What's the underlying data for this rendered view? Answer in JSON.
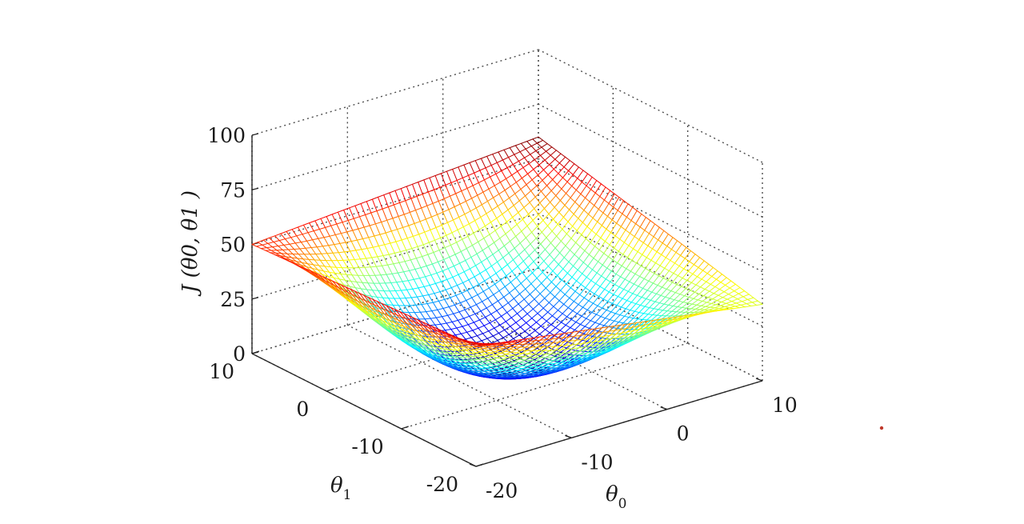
{
  "chart_data": {
    "type": "surface",
    "title": "",
    "function": "J(θ0, θ1)",
    "x": {
      "name": "theta0",
      "label": "θ",
      "label_sub": "0",
      "range": [
        -20,
        10
      ],
      "ticks": [
        -20,
        -10,
        0,
        10
      ],
      "tick_labels": [
        "-20",
        "-10",
        "0",
        "10"
      ]
    },
    "y": {
      "name": "theta1",
      "label": "θ",
      "label_sub": "1",
      "range": [
        -20,
        10
      ],
      "ticks": [
        -20,
        -10,
        0,
        10
      ],
      "tick_labels": [
        "-20",
        "-10",
        "0",
        "10"
      ]
    },
    "z": {
      "name": "J",
      "label": "J (θ0, θ1 )",
      "range": [
        0,
        100
      ],
      "ticks": [
        0,
        25,
        50,
        75,
        100
      ],
      "tick_labels": [
        "0",
        "25",
        "50",
        "75",
        "100"
      ]
    },
    "surface_corners": [
      {
        "theta0": -20,
        "theta1": -20,
        "J": 55
      },
      {
        "theta0": 10,
        "theta1": -20,
        "J": 35
      },
      {
        "theta0": -20,
        "theta1": 10,
        "J": 50
      },
      {
        "theta0": 10,
        "theta1": 10,
        "J": 60
      }
    ],
    "surface_minimum": {
      "J": 0
    },
    "mesh_resolution": 50,
    "colormap": "jet",
    "grid": true,
    "legend": "none"
  }
}
